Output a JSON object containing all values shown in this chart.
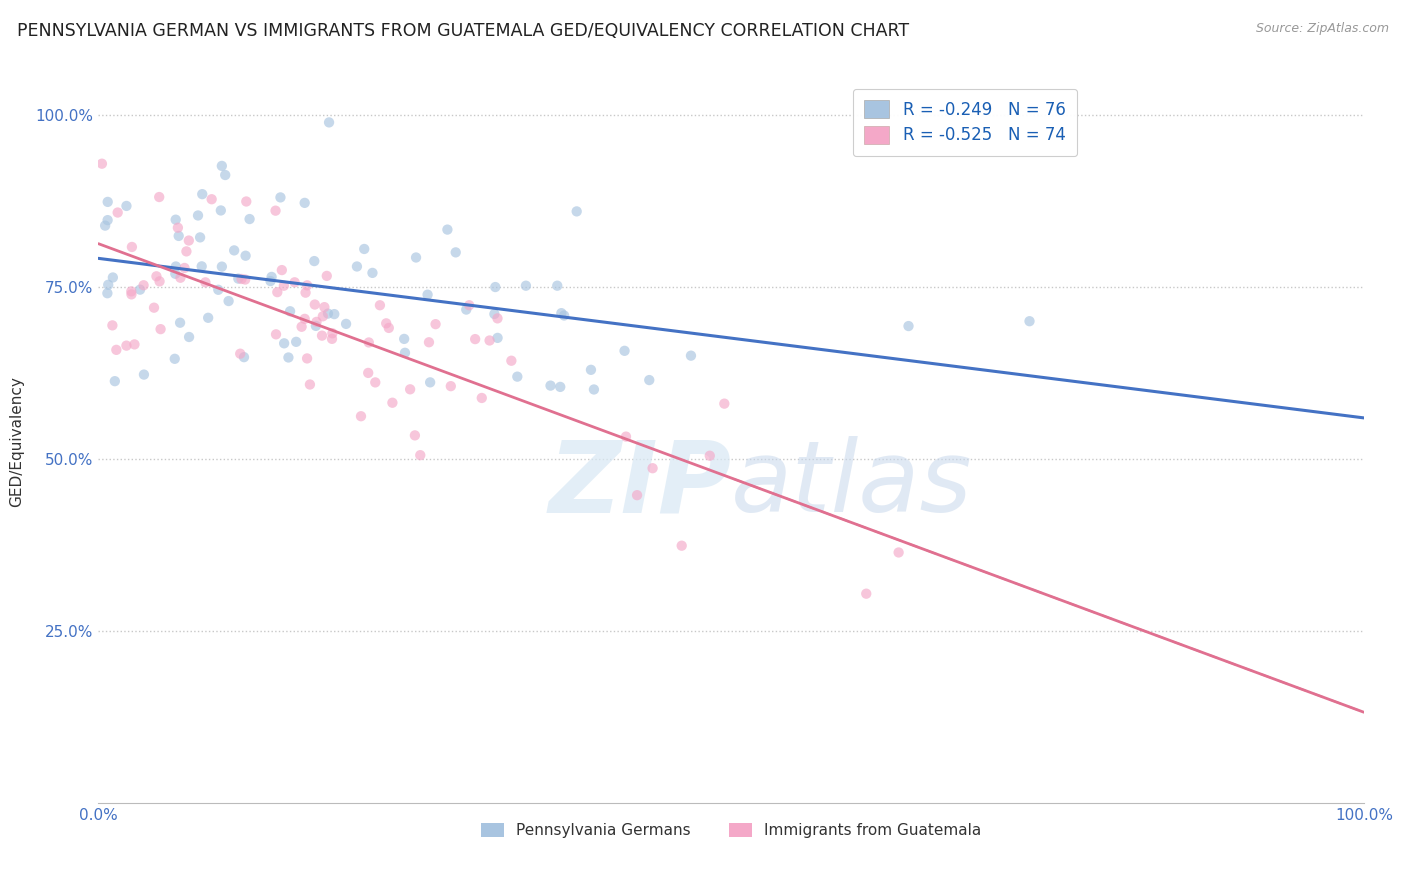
{
  "title": "PENNSYLVANIA GERMAN VS IMMIGRANTS FROM GUATEMALA GED/EQUIVALENCY CORRELATION CHART",
  "source": "Source: ZipAtlas.com",
  "ylabel": "GED/Equivalency",
  "legend_label1": "Pennsylvania Germans",
  "legend_label2": "Immigrants from Guatemala",
  "R1": -0.249,
  "N1": 76,
  "R2": -0.525,
  "N2": 74,
  "color1": "#a8c4e0",
  "color2": "#f4a8c8",
  "line1_color": "#4472c4",
  "line2_color": "#e07090",
  "background_color": "#ffffff",
  "grid_color": "#c8c8c8",
  "title_fontsize": 12.5,
  "axis_fontsize": 11,
  "tick_fontsize": 11,
  "scatter_alpha": 0.65,
  "scatter_size": 55,
  "watermark_color": "#d8e8f4",
  "watermark_alpha": 0.7
}
